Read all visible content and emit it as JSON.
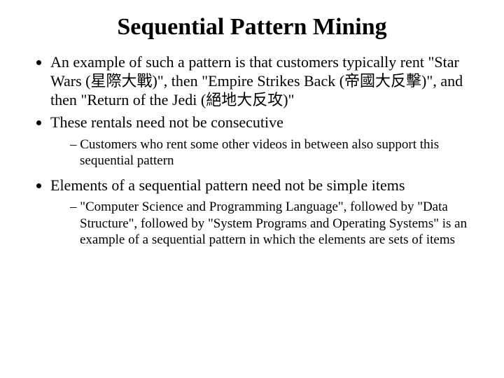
{
  "title": "Sequential Pattern Mining",
  "bullets": {
    "b1": "An example of such a pattern is that customers typically rent \"Star Wars (星際大戰)\", then \"Empire Strikes Back (帝國大反擊)\", and then \"Return of the Jedi (絕地大反攻)\"",
    "b2": "These rentals need not be consecutive",
    "b2_1": "Customers who rent some other videos in between also support this sequential pattern",
    "b3": "Elements of a sequential pattern need not be simple items",
    "b3_1": "\"Computer Science and Programming Language\", followed by \"Data Structure\", followed by \"System Programs and Operating Systems\" is an example of a sequential pattern in which the elements are sets of items"
  },
  "style": {
    "background_color": "#ffffff",
    "text_color": "#000000",
    "font_family": "Times New Roman",
    "title_fontsize": 34,
    "title_fontweight": "bold",
    "body_fontsize": 22,
    "sub_fontsize": 19
  }
}
